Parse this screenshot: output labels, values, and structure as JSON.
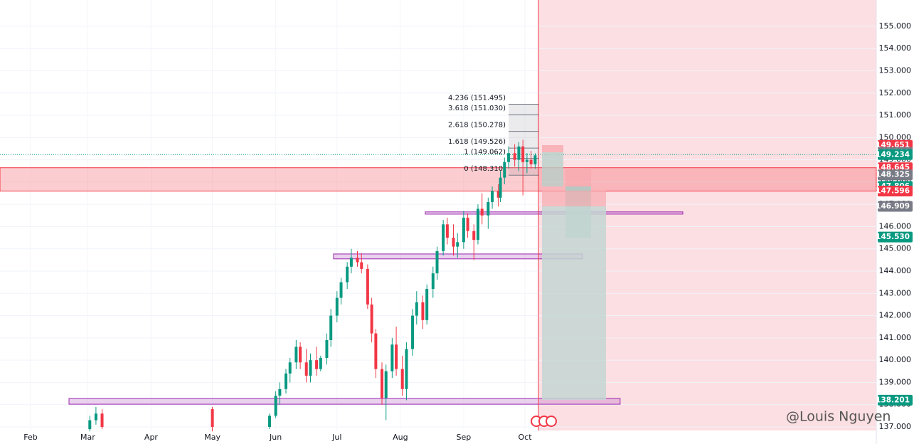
{
  "chart_data": {
    "type": "candlestick",
    "xlim": [
      16.03,
      445
    ],
    "ylim": [
      136.84,
      156.18
    ],
    "xticks": [
      {
        "value": 31,
        "label": "Feb"
      },
      {
        "value": 59,
        "label": "Mar"
      },
      {
        "value": 90,
        "label": "Apr"
      },
      {
        "value": 120,
        "label": "May"
      },
      {
        "value": 151,
        "label": "Jun"
      },
      {
        "value": 181,
        "label": "Jul"
      },
      {
        "value": 212,
        "label": "Aug"
      },
      {
        "value": 243,
        "label": "Sep"
      },
      {
        "value": 273,
        "label": "Oct"
      }
    ],
    "yticks": [
      {
        "value": 137,
        "label": "137.000"
      },
      {
        "value": 138,
        "label": "138.000"
      },
      {
        "value": 139,
        "label": "139.000"
      },
      {
        "value": 140,
        "label": "140.000"
      },
      {
        "value": 141,
        "label": "141.000"
      },
      {
        "value": 142,
        "label": "142.000"
      },
      {
        "value": 143,
        "label": "143.000"
      },
      {
        "value": 144,
        "label": "144.000"
      },
      {
        "value": 145,
        "label": "145.000"
      },
      {
        "value": 146,
        "label": "146.000"
      },
      {
        "value": 147,
        "label": "147.000"
      },
      {
        "value": 148,
        "label": "148.000"
      },
      {
        "value": 149,
        "label": "149.000"
      },
      {
        "value": 150,
        "label": "150.000"
      },
      {
        "value": 151,
        "label": "151.000"
      },
      {
        "value": 152,
        "label": "152.000"
      },
      {
        "value": 153,
        "label": "153.000"
      },
      {
        "value": 154,
        "label": "154.000"
      },
      {
        "value": 155,
        "label": "155.000"
      }
    ],
    "up_color": "#089981",
    "down_color": "#f23645",
    "candles": {
      "x": [
        60,
        63,
        66,
        120,
        148,
        151,
        153,
        156,
        158,
        161,
        163,
        166,
        168,
        171,
        173,
        176,
        178,
        181,
        183,
        186,
        188,
        191,
        193,
        196,
        198,
        200,
        203,
        205,
        208,
        210,
        213,
        215,
        218,
        220,
        223,
        225,
        228,
        230,
        233,
        235,
        238,
        240,
        243,
        245,
        248,
        250,
        252,
        255,
        257,
        260,
        261,
        263,
        265,
        268,
        270,
        272,
        274,
        276,
        278
      ],
      "open": [
        136.9,
        137.3,
        137.6,
        137.8,
        137.0,
        137.5,
        138.4,
        138.7,
        139.4,
        139.9,
        140.6,
        139.9,
        139.3,
        140.0,
        139.6,
        140.1,
        140.9,
        142.0,
        142.8,
        143.5,
        144.2,
        144.6,
        144.4,
        144.1,
        142.5,
        141.2,
        139.6,
        138.3,
        139.5,
        140.7,
        139.6,
        138.7,
        140.5,
        142.0,
        142.6,
        141.8,
        143.2,
        143.9,
        144.9,
        146.1,
        145.5,
        145.1,
        145.3,
        146.4,
        145.8,
        145.4,
        146.8,
        146.5,
        147.1,
        147.6,
        147.3,
        148.2,
        148.9,
        149.3,
        149.0,
        149.6,
        148.9,
        149.0,
        148.8
      ],
      "high": [
        137.5,
        137.9,
        137.8,
        137.9,
        137.6,
        138.6,
        139.0,
        139.6,
        140.1,
        140.9,
        140.8,
        140.5,
        140.3,
        140.6,
        140.2,
        141.2,
        142.3,
        143.1,
        143.7,
        144.4,
        145.0,
        144.9,
        144.8,
        144.3,
        142.8,
        141.4,
        139.9,
        139.8,
        141.0,
        141.5,
        140.2,
        140.8,
        142.3,
        143.1,
        142.9,
        143.4,
        144.2,
        145.1,
        146.3,
        146.4,
        146.1,
        145.7,
        146.7,
        146.6,
        146.1,
        147.0,
        147.5,
        147.3,
        147.8,
        147.9,
        148.5,
        149.1,
        149.6,
        149.7,
        149.8,
        149.9,
        149.3,
        149.4,
        149.3
      ],
      "low": [
        136.8,
        137.1,
        136.9,
        136.8,
        136.9,
        137.4,
        138.0,
        138.5,
        139.0,
        139.6,
        139.6,
        139.0,
        139.0,
        139.3,
        139.5,
        139.8,
        140.6,
        141.7,
        142.5,
        143.2,
        143.9,
        144.2,
        143.9,
        142.3,
        140.8,
        139.2,
        138.0,
        137.3,
        139.2,
        139.3,
        138.4,
        138.2,
        140.2,
        141.6,
        141.4,
        141.6,
        142.8,
        143.6,
        144.7,
        145.2,
        144.7,
        144.6,
        145.0,
        145.5,
        144.5,
        145.2,
        146.1,
        145.9,
        146.8,
        146.9,
        147.1,
        147.9,
        148.6,
        148.7,
        148.5,
        147.4,
        148.4,
        148.6,
        148.6
      ],
      "close": [
        137.3,
        137.6,
        137.0,
        137.0,
        137.5,
        138.4,
        138.7,
        139.4,
        139.9,
        140.6,
        139.9,
        139.3,
        140.0,
        139.6,
        140.1,
        140.9,
        142.0,
        142.8,
        143.5,
        144.2,
        144.6,
        144.4,
        144.1,
        142.5,
        141.2,
        139.6,
        138.3,
        139.5,
        140.7,
        139.6,
        138.7,
        140.5,
        142.0,
        142.6,
        141.8,
        143.2,
        143.9,
        144.9,
        146.1,
        145.5,
        145.1,
        145.3,
        146.4,
        145.8,
        145.4,
        146.8,
        146.5,
        147.1,
        147.6,
        147.3,
        148.2,
        148.9,
        149.3,
        149.0,
        149.6,
        148.9,
        149.0,
        148.8,
        149.2
      ]
    },
    "fib_levels": [
      {
        "label": "4.236 (151.495)",
        "value": 151.495
      },
      {
        "label": "3.618 (151.030)",
        "value": 151.03
      },
      {
        "label": "2.618 (150.278)",
        "value": 150.278
      },
      {
        "label": "1.618 (149.526)",
        "value": 149.526
      },
      {
        "label": "1 (149.062)",
        "value": 149.062
      },
      {
        "label": "0 (148.310)",
        "value": 148.31
      }
    ],
    "zone": [
      147.596,
      148.645
    ],
    "boxes": [
      {
        "x": [
          49.8,
          319.6
        ],
        "y": [
          138.02,
          138.28
        ]
      },
      {
        "x": [
          179.3,
          301.2
        ],
        "y": [
          144.55,
          144.77
        ]
      },
      {
        "x": [
          224.2,
          350.3
        ],
        "y": [
          146.56,
          146.66
        ]
      }
    ],
    "current_price": 149.234,
    "price_tags": [
      {
        "value": 149.651,
        "color": "#f23645"
      },
      {
        "value": 149.331,
        "color": "#787b86"
      },
      {
        "value": 149.234,
        "color": "#089981"
      },
      {
        "value": 148.645,
        "color": "#f23645"
      },
      {
        "value": 148.325,
        "color": "#787b86"
      },
      {
        "value": 147.806,
        "color": "#089981"
      },
      {
        "value": 147.596,
        "color": "#f23645"
      },
      {
        "value": 146.909,
        "color": "#787b86"
      },
      {
        "value": 145.53,
        "label": "145.530",
        "color": "#089981"
      },
      {
        "value": 138.201,
        "color": "#089981"
      }
    ],
    "watermark": "@Louis Nguyen"
  }
}
